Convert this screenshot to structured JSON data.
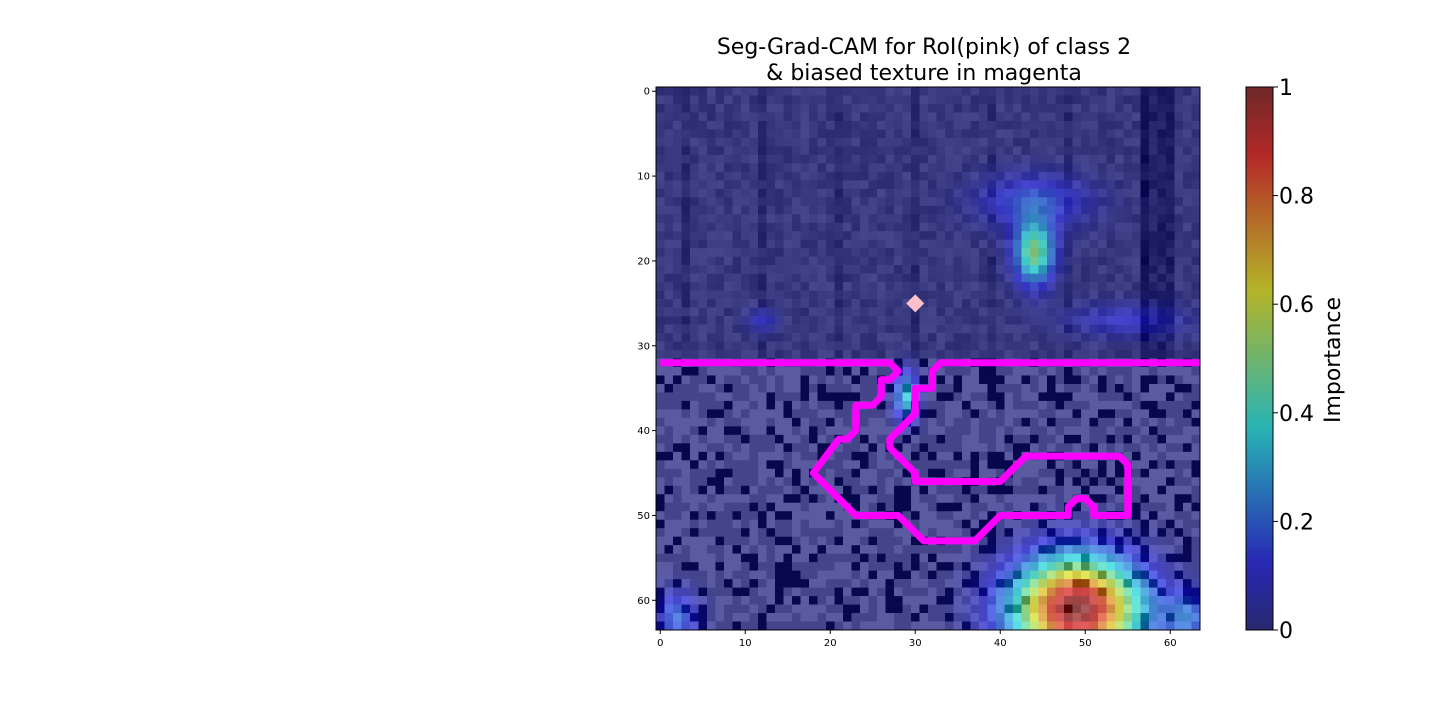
{
  "chart_data": {
    "type": "heatmap",
    "title_lines": [
      "Seg-Grad-CAM for RoI(pink) of class 2",
      "& biased texture in magenta"
    ],
    "grid_size": 64,
    "x_ticks": [
      0,
      10,
      20,
      30,
      40,
      50,
      60
    ],
    "y_ticks": [
      0,
      10,
      20,
      30,
      40,
      50,
      60
    ],
    "xlim": [
      -0.5,
      63.5
    ],
    "ylim": [
      63.5,
      -0.5
    ],
    "texture_boundary_row": 32,
    "roi_contour": [
      [
        0,
        32
      ],
      [
        27,
        32
      ],
      [
        28,
        33
      ],
      [
        27,
        34
      ],
      [
        26,
        34
      ],
      [
        26,
        36
      ],
      [
        25,
        37
      ],
      [
        23,
        37
      ],
      [
        23,
        40
      ],
      [
        22,
        41
      ],
      [
        21,
        41
      ],
      [
        18,
        45
      ],
      [
        22,
        49
      ],
      [
        23,
        50
      ],
      [
        28,
        50
      ],
      [
        30,
        52
      ],
      [
        31,
        53
      ],
      [
        37,
        53
      ],
      [
        39,
        51
      ],
      [
        40,
        50
      ],
      [
        48,
        50
      ],
      [
        48,
        49
      ],
      [
        49,
        48
      ],
      [
        50,
        48
      ],
      [
        51,
        49
      ],
      [
        51,
        50
      ],
      [
        55,
        50
      ],
      [
        55,
        44
      ],
      [
        54,
        43
      ],
      [
        43,
        43
      ],
      [
        42,
        44
      ],
      [
        41,
        45
      ],
      [
        40,
        46
      ],
      [
        30,
        46
      ],
      [
        30,
        45
      ],
      [
        29,
        44
      ],
      [
        27,
        42
      ],
      [
        27,
        41
      ],
      [
        29,
        39
      ],
      [
        30,
        38
      ],
      [
        30,
        35
      ],
      [
        32,
        35
      ],
      [
        32,
        33
      ],
      [
        33,
        32
      ],
      [
        64,
        32
      ]
    ],
    "roi_marker": {
      "x": 30.5,
      "y": 25.5,
      "color": "#ffc0cb"
    },
    "hotspots": [
      {
        "x": 44,
        "y": 19,
        "sx": 1.6,
        "sy": 2.6,
        "amp": 0.5
      },
      {
        "x": 44,
        "y": 13,
        "sx": 4.5,
        "sy": 2.2,
        "amp": 0.18
      },
      {
        "x": 49,
        "y": 61,
        "sx": 5.2,
        "sy": 4.2,
        "amp": 1.0
      },
      {
        "x": 29,
        "y": 36,
        "sx": 1.0,
        "sy": 2.0,
        "amp": 0.35
      },
      {
        "x": 2,
        "y": 62,
        "sx": 1.8,
        "sy": 2.2,
        "amp": 0.2
      },
      {
        "x": 62,
        "y": 62,
        "sx": 1.8,
        "sy": 2.2,
        "amp": 0.2
      },
      {
        "x": 12,
        "y": 27,
        "sx": 1.2,
        "sy": 1.0,
        "amp": 0.12
      },
      {
        "x": 55,
        "y": 27,
        "sx": 5.0,
        "sy": 1.4,
        "amp": 0.12
      }
    ],
    "colorbar": {
      "label": "Importance",
      "ticks": [
        "0",
        "0.2",
        "0.4",
        "0.6",
        "0.8",
        "1"
      ],
      "values": [
        0,
        0.2,
        0.4,
        0.6,
        0.8,
        1
      ],
      "vmin": 0,
      "vmax": 1,
      "colormap": "jet"
    },
    "contour_color": "#ff00ff"
  }
}
